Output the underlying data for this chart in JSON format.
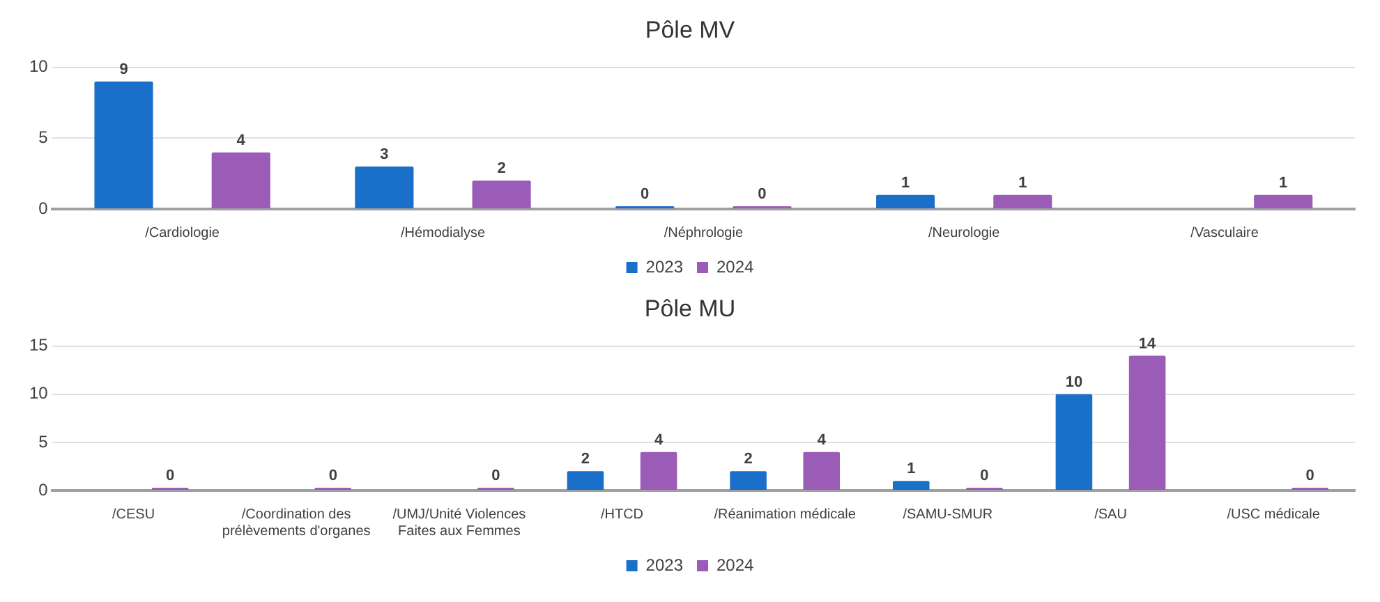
{
  "chart_data": [
    {
      "type": "bar",
      "title": "Pôle MV",
      "categories": [
        "/Cardiologie",
        "/Hémodialyse",
        "/Néphrologie",
        "/Neurologie",
        "/Vasculaire"
      ],
      "series": [
        {
          "name": "2023",
          "color": "#1a6fc9",
          "values": [
            9,
            3,
            0,
            1,
            null
          ]
        },
        {
          "name": "2024",
          "color": "#9b5cb8",
          "values": [
            4,
            2,
            0,
            1,
            1
          ]
        }
      ],
      "ylim": [
        0,
        10
      ],
      "yticks": [
        0,
        5,
        10
      ],
      "grid": "y",
      "legend": "bottom",
      "data_labels": true
    },
    {
      "type": "bar",
      "title": "Pôle MU",
      "categories": [
        "/CESU",
        "/Coordination des prélèvements d'organes",
        "/UMJ/Unité Violences Faites aux Femmes",
        "/HTCD",
        "/Réanimation médicale",
        "/SAMU-SMUR",
        "/SAU",
        "/USC médicale"
      ],
      "series": [
        {
          "name": "2023",
          "color": "#1a6fc9",
          "values": [
            null,
            null,
            null,
            2,
            2,
            1,
            10,
            null
          ]
        },
        {
          "name": "2024",
          "color": "#9b5cb8",
          "values": [
            0,
            0,
            0,
            4,
            4,
            0,
            14,
            0
          ]
        }
      ],
      "ylim": [
        0,
        15
      ],
      "yticks": [
        0,
        5,
        10,
        15
      ],
      "grid": "y",
      "legend": "bottom",
      "data_labels": true
    }
  ]
}
